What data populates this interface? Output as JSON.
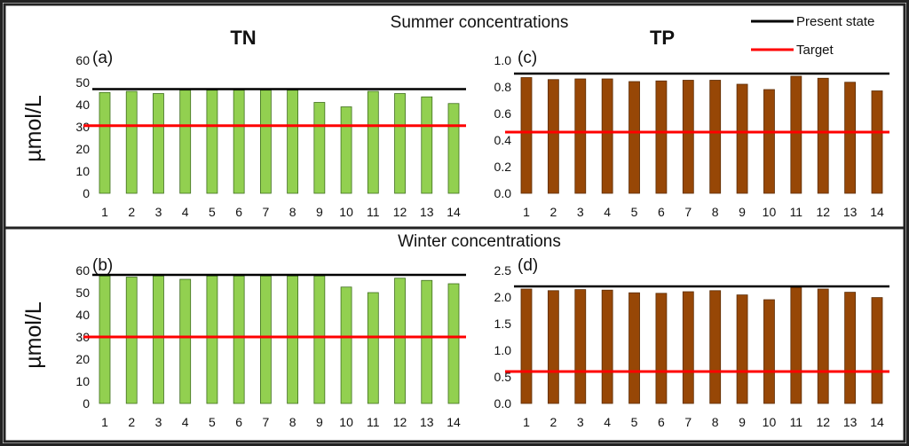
{
  "headings": {
    "summer": "Summer concentrations",
    "winter": "Winter concentrations",
    "tn": "TN",
    "tp": "TP",
    "unit_top": "µmol/L",
    "unit_bottom": "µmol/L"
  },
  "legend": {
    "present": "Present state",
    "target": "Target",
    "present_color": "#000000",
    "target_color": "#ff0000"
  },
  "colors": {
    "tn_bar": "#92d050",
    "tn_bar_stroke": "#3f6e1f",
    "tp_bar": "#974706",
    "tp_bar_stroke": "#5c2c04"
  },
  "chart_data": [
    {
      "id": "a",
      "panel_label": "(a)",
      "type": "bar",
      "categories": [
        "1",
        "2",
        "3",
        "4",
        "5",
        "6",
        "7",
        "8",
        "9",
        "10",
        "11",
        "12",
        "13",
        "14"
      ],
      "values": [
        45.5,
        46,
        45,
        46.5,
        46.5,
        46.5,
        46.5,
        46.5,
        41,
        39,
        46,
        45,
        43.5,
        40.5
      ],
      "ylim": [
        0,
        60
      ],
      "yticks": [
        "0",
        "10",
        "20",
        "30",
        "40",
        "50",
        "60"
      ],
      "present_state": 47,
      "target": 30.5
    },
    {
      "id": "c",
      "panel_label": "(c)",
      "type": "bar",
      "categories": [
        "1",
        "2",
        "3",
        "4",
        "5",
        "6",
        "7",
        "8",
        "9",
        "10",
        "11",
        "12",
        "13",
        "14"
      ],
      "values": [
        0.87,
        0.855,
        0.86,
        0.86,
        0.84,
        0.845,
        0.85,
        0.85,
        0.82,
        0.78,
        0.88,
        0.865,
        0.835,
        0.77
      ],
      "ylim": [
        0,
        1.0
      ],
      "yticks": [
        "0.0",
        "0.2",
        "0.4",
        "0.6",
        "0.8",
        "1.0"
      ],
      "present_state": 0.9,
      "target": 0.46
    },
    {
      "id": "b",
      "panel_label": "(b)",
      "type": "bar",
      "categories": [
        "1",
        "2",
        "3",
        "4",
        "5",
        "6",
        "7",
        "8",
        "9",
        "10",
        "11",
        "12",
        "13",
        "14"
      ],
      "values": [
        57.5,
        57,
        57.5,
        56,
        57.5,
        57.5,
        57.5,
        57.5,
        57.5,
        52.5,
        50,
        56.5,
        55.5,
        54
      ],
      "ylim": [
        0,
        60
      ],
      "yticks": [
        "0",
        "10",
        "20",
        "30",
        "40",
        "50",
        "60"
      ],
      "present_state": 58,
      "target": 30
    },
    {
      "id": "d",
      "panel_label": "(d)",
      "type": "bar",
      "categories": [
        "1",
        "2",
        "3",
        "4",
        "5",
        "6",
        "7",
        "8",
        "9",
        "10",
        "11",
        "12",
        "13",
        "14"
      ],
      "values": [
        2.15,
        2.12,
        2.14,
        2.13,
        2.08,
        2.07,
        2.1,
        2.12,
        2.04,
        1.95,
        2.18,
        2.15,
        2.09,
        1.99
      ],
      "ylim": [
        0,
        2.5
      ],
      "yticks": [
        "0.0",
        "0.5",
        "1.0",
        "1.5",
        "2.0",
        "2.5"
      ],
      "present_state": 2.2,
      "target": 0.6
    }
  ]
}
